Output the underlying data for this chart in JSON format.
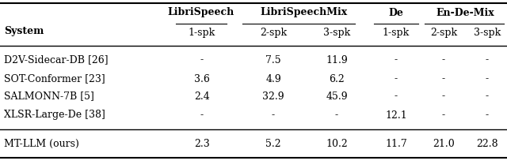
{
  "col_headers": [
    "1-spk",
    "2-spk",
    "3-spk",
    "1-spk",
    "2-spk",
    "3-spk"
  ],
  "group_labels": [
    "LibriSpeech",
    "LibriSpeechMix",
    "De",
    "En-De-Mix"
  ],
  "group_col_indices": [
    [
      0
    ],
    [
      1,
      2
    ],
    [
      3
    ],
    [
      4,
      5
    ]
  ],
  "rows": [
    [
      "D2V-Sidecar-DB [26]",
      "-",
      "7.5",
      "11.9",
      "-",
      "-",
      "-"
    ],
    [
      "SOT-Conformer [23]",
      "3.6",
      "4.9",
      "6.2",
      "-",
      "-",
      "-"
    ],
    [
      "SALMONN-7B [5]",
      "2.4",
      "32.9",
      "45.9",
      "-",
      "-",
      "-"
    ],
    [
      "XLSR-Large-De [38]",
      "-",
      "-",
      "-",
      "12.1",
      "-",
      "-"
    ]
  ],
  "last_row": [
    "MT-LLM (ours)",
    "2.3",
    "5.2",
    "10.2",
    "11.7",
    "21.0",
    "22.8"
  ],
  "system_header": "System",
  "bg_color": "#ffffff"
}
